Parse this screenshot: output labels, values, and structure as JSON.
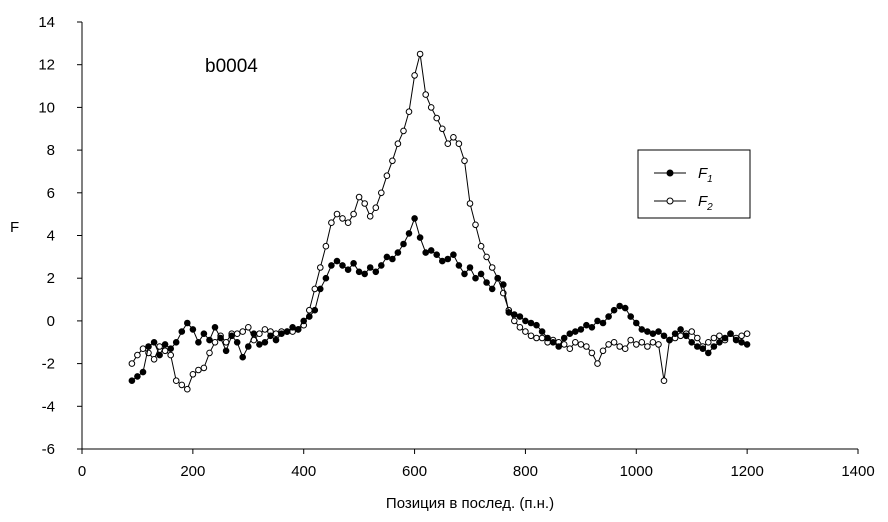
{
  "chart_data": {
    "type": "line",
    "annotation": "b0004",
    "xlabel": "Позиция в послед. (п.н.)",
    "ylabel": "F",
    "xlim": [
      0,
      1400
    ],
    "ylim": [
      -6,
      14
    ],
    "xticks": [
      0,
      200,
      400,
      600,
      800,
      1000,
      1200,
      1400
    ],
    "yticks": [
      -6,
      -4,
      -2,
      0,
      2,
      4,
      6,
      8,
      10,
      12,
      14
    ],
    "grid": false,
    "legend_position": "right",
    "series": [
      {
        "name": "F1",
        "marker": "filled-circle",
        "color": "#000000",
        "x": [
          90,
          100,
          110,
          120,
          130,
          140,
          150,
          160,
          170,
          180,
          190,
          200,
          210,
          220,
          230,
          240,
          250,
          260,
          270,
          280,
          290,
          300,
          310,
          320,
          330,
          340,
          350,
          360,
          370,
          380,
          390,
          400,
          410,
          420,
          430,
          440,
          450,
          460,
          470,
          480,
          490,
          500,
          510,
          520,
          530,
          540,
          550,
          560,
          570,
          580,
          590,
          600,
          610,
          620,
          630,
          640,
          650,
          660,
          670,
          680,
          690,
          700,
          710,
          720,
          730,
          740,
          750,
          760,
          770,
          780,
          790,
          800,
          810,
          820,
          830,
          840,
          850,
          860,
          870,
          880,
          890,
          900,
          910,
          920,
          930,
          940,
          950,
          960,
          970,
          980,
          990,
          1000,
          1010,
          1020,
          1030,
          1040,
          1050,
          1060,
          1070,
          1080,
          1090,
          1100,
          1110,
          1120,
          1130,
          1140,
          1150,
          1160,
          1170,
          1180,
          1190,
          1200
        ],
        "y": [
          -2.8,
          -2.6,
          -2.4,
          -1.2,
          -1.0,
          -1.6,
          -1.1,
          -1.3,
          -1.0,
          -0.5,
          -0.1,
          -0.4,
          -1.0,
          -0.6,
          -0.9,
          -0.3,
          -0.8,
          -1.4,
          -0.7,
          -1.0,
          -1.7,
          -1.2,
          -0.6,
          -1.1,
          -1.0,
          -0.7,
          -0.9,
          -0.6,
          -0.5,
          -0.3,
          -0.4,
          0.0,
          0.2,
          0.5,
          1.5,
          2.0,
          2.6,
          2.8,
          2.6,
          2.4,
          2.7,
          2.3,
          2.2,
          2.5,
          2.3,
          2.6,
          3.0,
          2.9,
          3.2,
          3.6,
          4.1,
          4.8,
          3.9,
          3.2,
          3.3,
          3.1,
          2.8,
          2.9,
          3.1,
          2.6,
          2.2,
          2.5,
          2.0,
          2.2,
          1.8,
          1.5,
          2.0,
          1.7,
          0.4,
          0.3,
          0.2,
          0.0,
          -0.1,
          -0.2,
          -0.5,
          -0.8,
          -1.0,
          -1.2,
          -0.8,
          -0.6,
          -0.5,
          -0.4,
          -0.2,
          -0.3,
          0.0,
          -0.1,
          0.2,
          0.5,
          0.7,
          0.6,
          0.2,
          -0.1,
          -0.4,
          -0.5,
          -0.6,
          -0.5,
          -0.7,
          -0.9,
          -0.6,
          -0.4,
          -0.7,
          -1.0,
          -1.2,
          -1.3,
          -1.5,
          -1.2,
          -1.0,
          -0.8,
          -0.6,
          -0.9,
          -1.0,
          -1.1
        ]
      },
      {
        "name": "F2",
        "marker": "open-circle",
        "color": "#000000",
        "x": [
          90,
          100,
          110,
          120,
          130,
          140,
          150,
          160,
          170,
          180,
          190,
          200,
          210,
          220,
          230,
          240,
          250,
          260,
          270,
          280,
          290,
          300,
          310,
          320,
          330,
          340,
          350,
          360,
          370,
          380,
          390,
          400,
          410,
          420,
          430,
          440,
          450,
          460,
          470,
          480,
          490,
          500,
          510,
          520,
          530,
          540,
          550,
          560,
          570,
          580,
          590,
          600,
          610,
          620,
          630,
          640,
          650,
          660,
          670,
          680,
          690,
          700,
          710,
          720,
          730,
          740,
          750,
          760,
          770,
          780,
          790,
          800,
          810,
          820,
          830,
          840,
          850,
          860,
          870,
          880,
          890,
          900,
          910,
          920,
          930,
          940,
          950,
          960,
          970,
          980,
          990,
          1000,
          1010,
          1020,
          1030,
          1040,
          1050,
          1060,
          1070,
          1080,
          1090,
          1100,
          1110,
          1120,
          1130,
          1140,
          1150,
          1160,
          1170,
          1180,
          1190,
          1200
        ],
        "y": [
          -2.0,
          -1.6,
          -1.3,
          -1.5,
          -1.8,
          -1.2,
          -1.4,
          -1.6,
          -2.8,
          -3.0,
          -3.2,
          -2.5,
          -2.3,
          -2.2,
          -1.5,
          -1.0,
          -0.7,
          -1.0,
          -0.6,
          -0.6,
          -0.5,
          -0.3,
          -0.9,
          -0.6,
          -0.4,
          -0.5,
          -0.6,
          -0.5,
          -0.5,
          -0.5,
          -0.4,
          -0.2,
          0.5,
          1.5,
          2.5,
          3.5,
          4.6,
          5.0,
          4.8,
          4.6,
          5.0,
          5.8,
          5.5,
          4.9,
          5.3,
          6.0,
          6.8,
          7.5,
          8.3,
          8.9,
          9.8,
          11.5,
          12.5,
          10.6,
          10.0,
          9.5,
          9.0,
          8.3,
          8.6,
          8.3,
          7.5,
          5.5,
          4.5,
          3.5,
          3.0,
          2.5,
          2.0,
          1.3,
          0.5,
          0.0,
          -0.3,
          -0.5,
          -0.7,
          -0.8,
          -0.8,
          -1.0,
          -0.9,
          -1.0,
          -1.1,
          -1.3,
          -1.0,
          -1.1,
          -1.2,
          -1.5,
          -2.0,
          -1.4,
          -1.1,
          -1.0,
          -1.2,
          -1.3,
          -0.9,
          -1.1,
          -1.0,
          -1.2,
          -1.0,
          -1.1,
          -2.8,
          -0.9,
          -0.8,
          -0.7,
          -0.6,
          -0.5,
          -0.8,
          -1.2,
          -1.0,
          -0.8,
          -0.7,
          -0.9,
          -0.6,
          -0.8,
          -0.7,
          -0.6
        ]
      }
    ]
  },
  "legend": {
    "entries": [
      {
        "base": "F",
        "sub": "1"
      },
      {
        "base": "F",
        "sub": "2"
      }
    ]
  }
}
